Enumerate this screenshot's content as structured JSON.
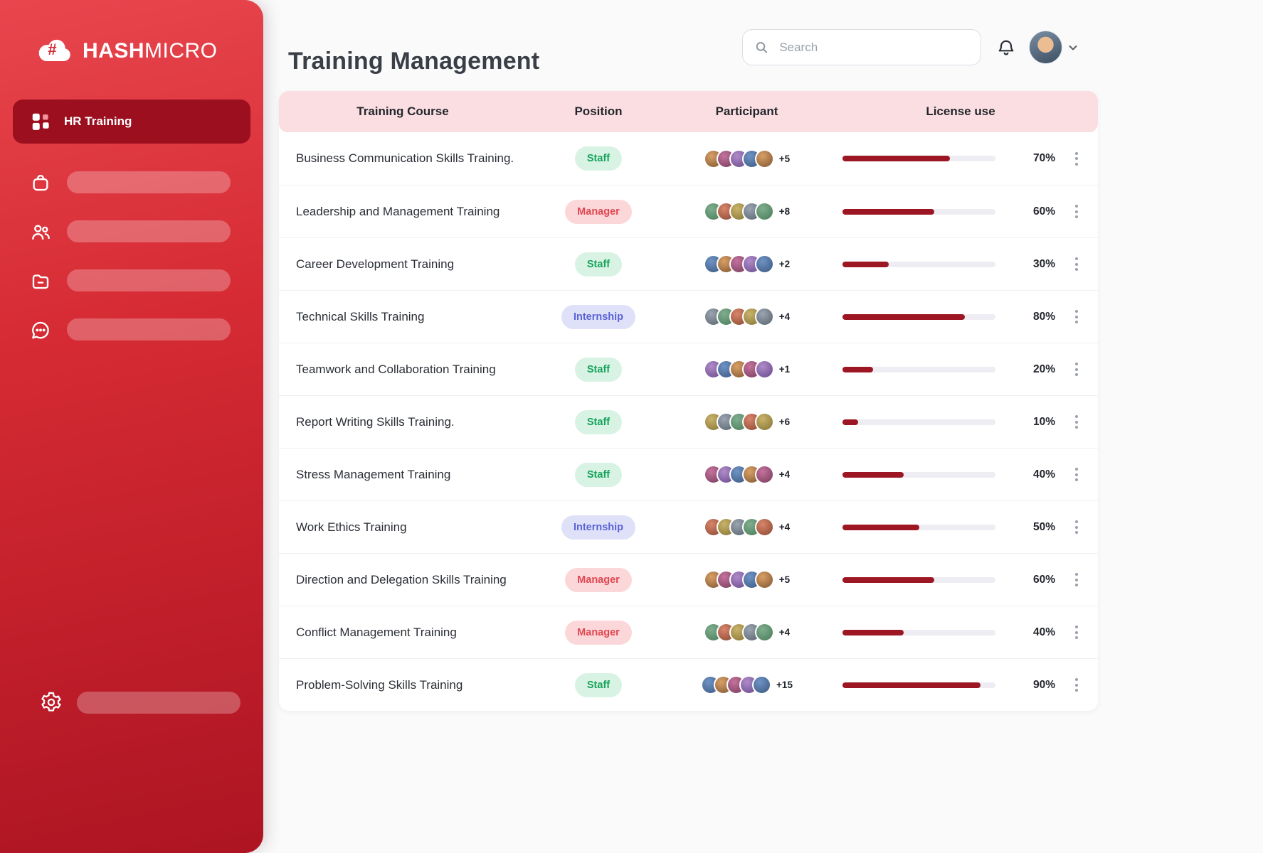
{
  "sidebar": {
    "brand_bold": "HASH",
    "brand_light": "MICRO",
    "active_item_label": "HR Training"
  },
  "header": {
    "title": "Training Management",
    "search_placeholder": "Search"
  },
  "table": {
    "columns": {
      "course": "Training Course",
      "position": "Position",
      "participant": "Participant",
      "license": "License use"
    },
    "rows": [
      {
        "course": "Business Communication Skills Training.",
        "position_label": "Staff",
        "position_type": "staff",
        "extra_count": "+5",
        "license_pct": 70
      },
      {
        "course": "Leadership and Management Training",
        "position_label": "Manager",
        "position_type": "manager",
        "extra_count": "+8",
        "license_pct": 60
      },
      {
        "course": "Career Development Training",
        "position_label": "Staff",
        "position_type": "staff",
        "extra_count": "+2",
        "license_pct": 30
      },
      {
        "course": "Technical Skills Training",
        "position_label": "Internship",
        "position_type": "intern",
        "extra_count": "+4",
        "license_pct": 80
      },
      {
        "course": "Teamwork and Collaboration Training",
        "position_label": "Staff",
        "position_type": "staff",
        "extra_count": "+1",
        "license_pct": 20
      },
      {
        "course": "Report Writing Skills Training.",
        "position_label": "Staff",
        "position_type": "staff",
        "extra_count": "+6",
        "license_pct": 10
      },
      {
        "course": "Stress Management Training",
        "position_label": "Staff",
        "position_type": "staff",
        "extra_count": "+4",
        "license_pct": 40
      },
      {
        "course": "Work Ethics Training",
        "position_label": "Internship",
        "position_type": "intern",
        "extra_count": "+4",
        "license_pct": 50
      },
      {
        "course": "Direction and Delegation Skills Training",
        "position_label": "Manager",
        "position_type": "manager",
        "extra_count": "+5",
        "license_pct": 60
      },
      {
        "course": "Conflict Management Training",
        "position_label": "Manager",
        "position_type": "manager",
        "extra_count": "+4",
        "license_pct": 40
      },
      {
        "course": "Problem-Solving Skills Training",
        "position_label": "Staff",
        "position_type": "staff",
        "extra_count": "+15",
        "license_pct": 90
      }
    ]
  },
  "colors": {
    "sidebar_red": "#d62b34",
    "sidebar_active": "#9c0f1f",
    "table_header_bg": "#fbdee1",
    "progress_fill": "#9d1623",
    "staff_text": "#17a35b",
    "manager_text": "#e04750",
    "internship_text": "#5a63d6"
  }
}
